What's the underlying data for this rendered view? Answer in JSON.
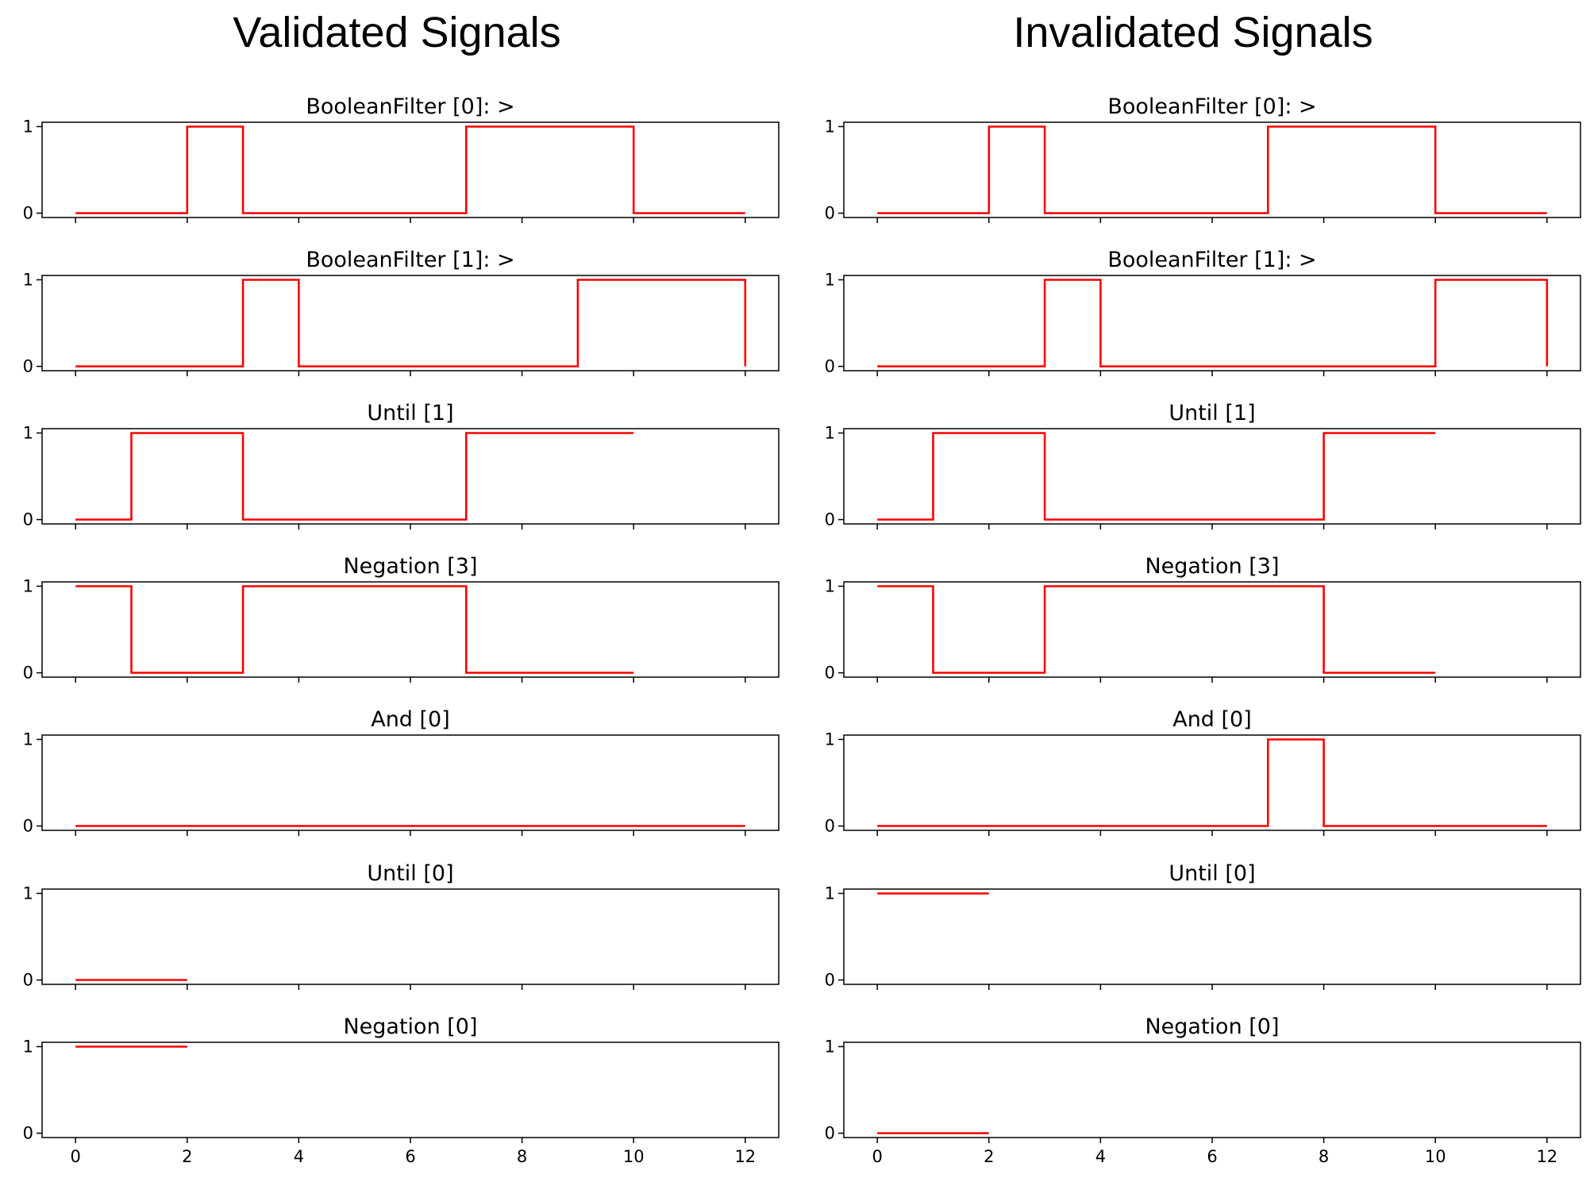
{
  "figure": {
    "left_title": "Validated Signals",
    "right_title": "Invalidated Signals"
  },
  "chart_data": [
    {
      "column": "Validated Signals",
      "type": "line",
      "subtype": "step",
      "line_color": "#ff0000",
      "xlim": [
        -0.6,
        12.6
      ],
      "ylim": [
        -0.05,
        1.05
      ],
      "xticks": [
        0,
        2,
        4,
        6,
        8,
        10,
        12
      ],
      "yticks": [
        0,
        1
      ],
      "grid": false,
      "panels": [
        {
          "title": "BooleanFilter [0]: >",
          "x": [
            0,
            2,
            2,
            3,
            3,
            7,
            7,
            10,
            10,
            12
          ],
          "y": [
            0,
            0,
            1,
            1,
            0,
            0,
            1,
            1,
            0,
            0
          ]
        },
        {
          "title": "BooleanFilter [1]: >",
          "x": [
            0,
            3,
            3,
            4,
            4,
            9,
            9,
            12,
            12
          ],
          "y": [
            0,
            0,
            1,
            1,
            0,
            0,
            1,
            1,
            0
          ]
        },
        {
          "title": "Until [1]",
          "x": [
            0,
            1,
            1,
            3,
            3,
            7,
            7,
            10
          ],
          "y": [
            0,
            0,
            1,
            1,
            0,
            0,
            1,
            1
          ]
        },
        {
          "title": "Negation [3]",
          "x": [
            0,
            1,
            1,
            3,
            3,
            7,
            7,
            10
          ],
          "y": [
            1,
            1,
            0,
            0,
            1,
            1,
            0,
            0
          ]
        },
        {
          "title": "And [0]",
          "x": [
            0,
            12
          ],
          "y": [
            0,
            0
          ]
        },
        {
          "title": "Until [0]",
          "x": [
            0,
            2
          ],
          "y": [
            0,
            0
          ]
        },
        {
          "title": "Negation [0]",
          "x": [
            0,
            2
          ],
          "y": [
            1,
            1
          ]
        }
      ]
    },
    {
      "column": "Invalidated Signals",
      "type": "line",
      "subtype": "step",
      "line_color": "#ff0000",
      "xlim": [
        -0.6,
        12.6
      ],
      "ylim": [
        -0.05,
        1.05
      ],
      "xticks": [
        0,
        2,
        4,
        6,
        8,
        10,
        12
      ],
      "yticks": [
        0,
        1
      ],
      "grid": false,
      "panels": [
        {
          "title": "BooleanFilter [0]: >",
          "x": [
            0,
            2,
            2,
            3,
            3,
            7,
            7,
            10,
            10,
            12
          ],
          "y": [
            0,
            0,
            1,
            1,
            0,
            0,
            1,
            1,
            0,
            0
          ]
        },
        {
          "title": "BooleanFilter [1]: >",
          "x": [
            0,
            3,
            3,
            4,
            4,
            10,
            10,
            12,
            12
          ],
          "y": [
            0,
            0,
            1,
            1,
            0,
            0,
            1,
            1,
            0
          ]
        },
        {
          "title": "Until [1]",
          "x": [
            0,
            1,
            1,
            3,
            3,
            8,
            8,
            10
          ],
          "y": [
            0,
            0,
            1,
            1,
            0,
            0,
            1,
            1
          ]
        },
        {
          "title": "Negation [3]",
          "x": [
            0,
            1,
            1,
            3,
            3,
            8,
            8,
            10
          ],
          "y": [
            1,
            1,
            0,
            0,
            1,
            1,
            0,
            0
          ]
        },
        {
          "title": "And [0]",
          "x": [
            0,
            7,
            7,
            8,
            8,
            12
          ],
          "y": [
            0,
            0,
            1,
            1,
            0,
            0
          ]
        },
        {
          "title": "Until [0]",
          "x": [
            0,
            2
          ],
          "y": [
            1,
            1
          ]
        },
        {
          "title": "Negation [0]",
          "x": [
            0,
            2
          ],
          "y": [
            0,
            0
          ]
        }
      ]
    }
  ]
}
